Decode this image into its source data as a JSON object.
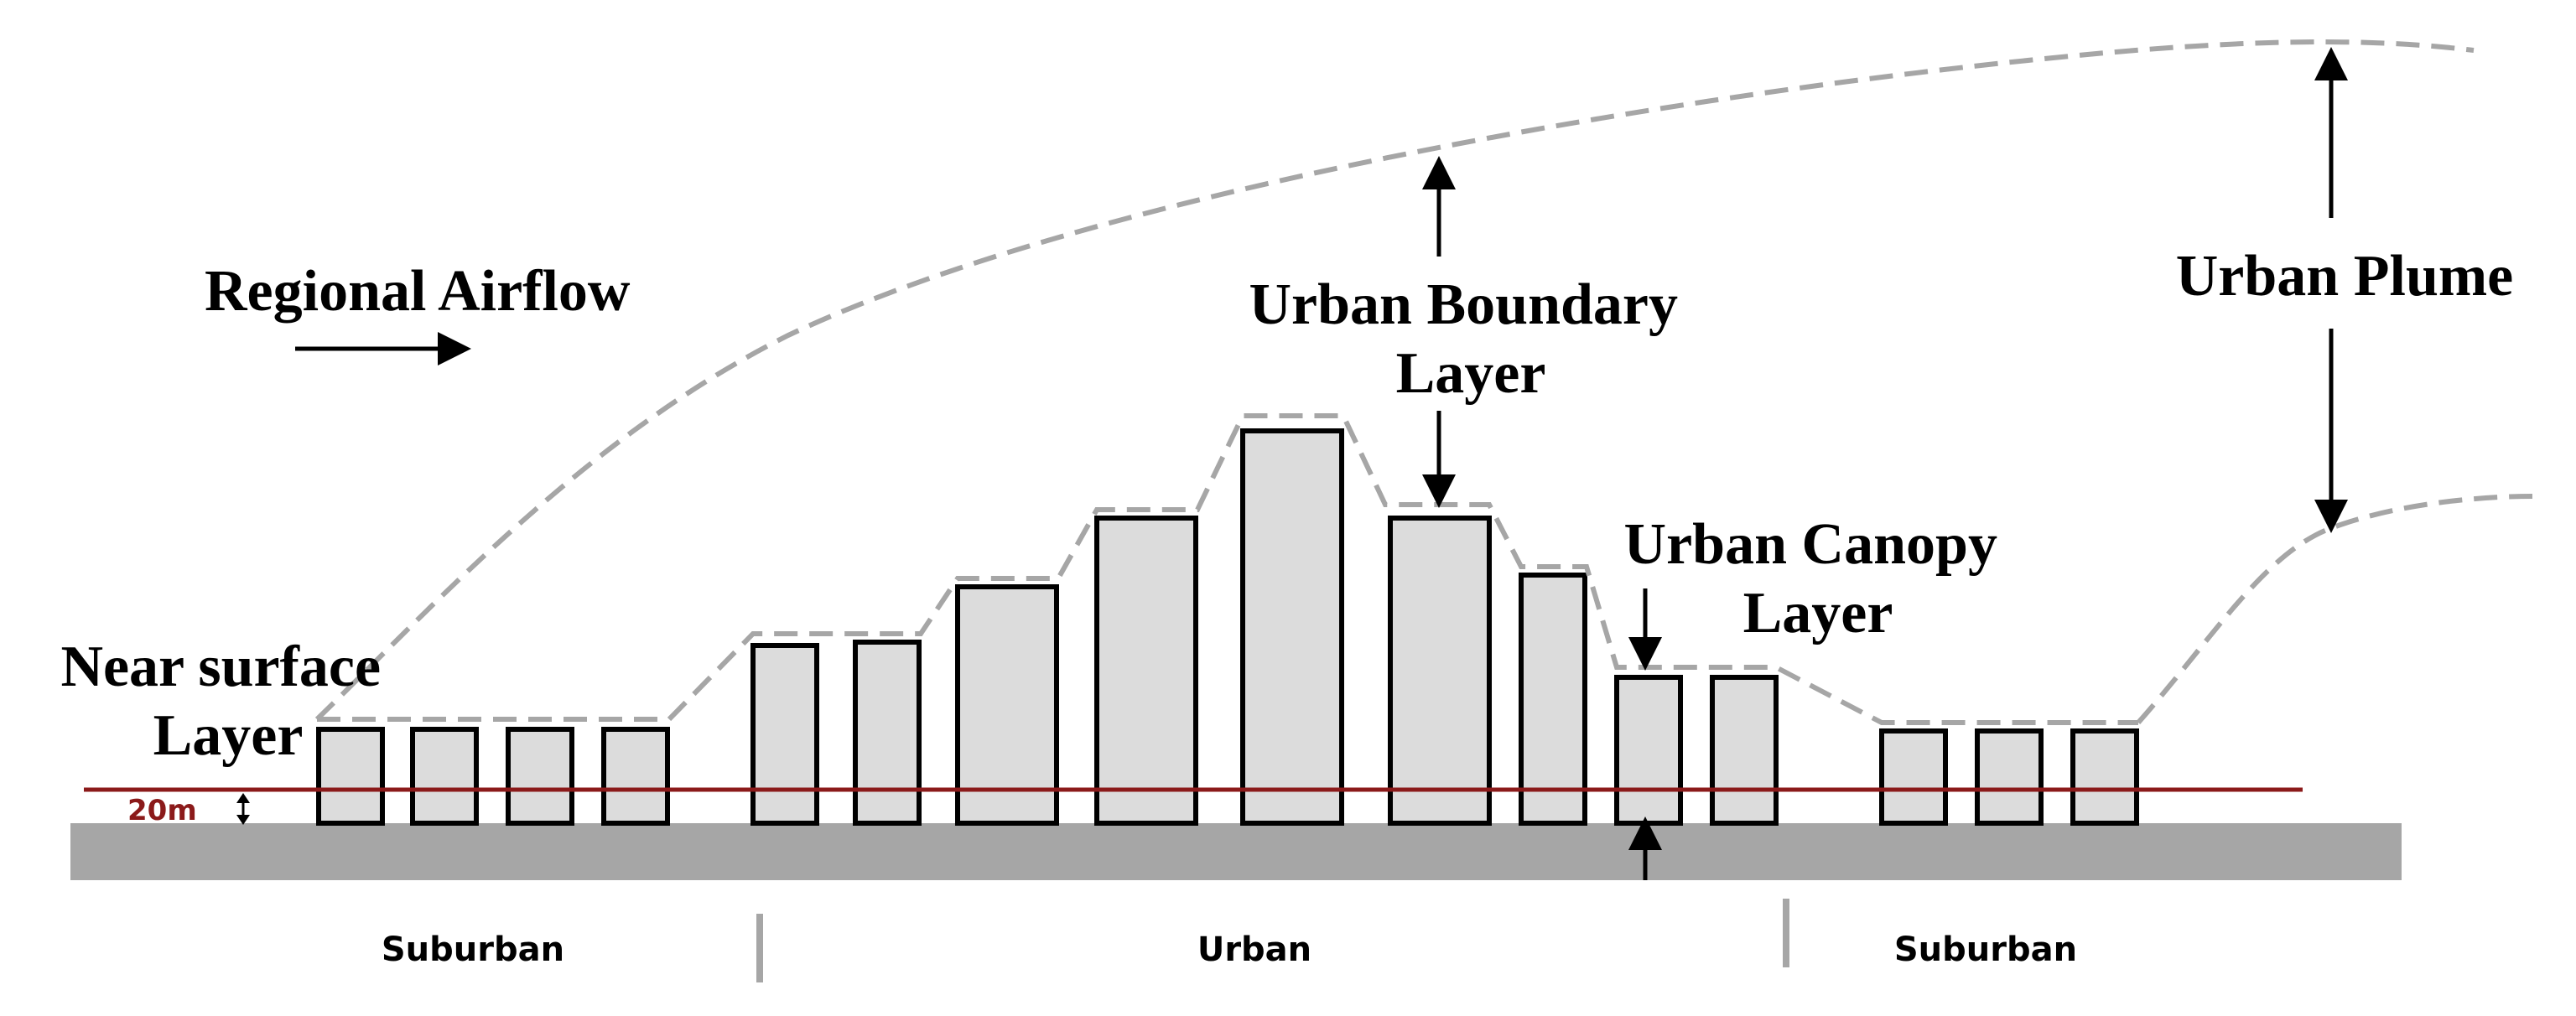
{
  "labels": {
    "regional_airflow": "Regional Airflow",
    "urban_boundary_layer": [
      "Urban Boundary",
      "Layer"
    ],
    "urban_plume": "Urban Plume",
    "urban_canopy_layer": [
      "Urban Canopy",
      "Layer"
    ],
    "near_surface_layer": [
      "Near surface",
      "Layer"
    ],
    "height_marker": "20m"
  },
  "regions": {
    "left": "Suburban",
    "center": "Urban",
    "right": "Suburban"
  },
  "colors": {
    "building_fill": "#dcdcdc",
    "ground": "#a6a6a6",
    "dashed_boundary": "#a6a6a6",
    "height_line": "#8b1a1a",
    "separator": "#a6a6a6"
  }
}
